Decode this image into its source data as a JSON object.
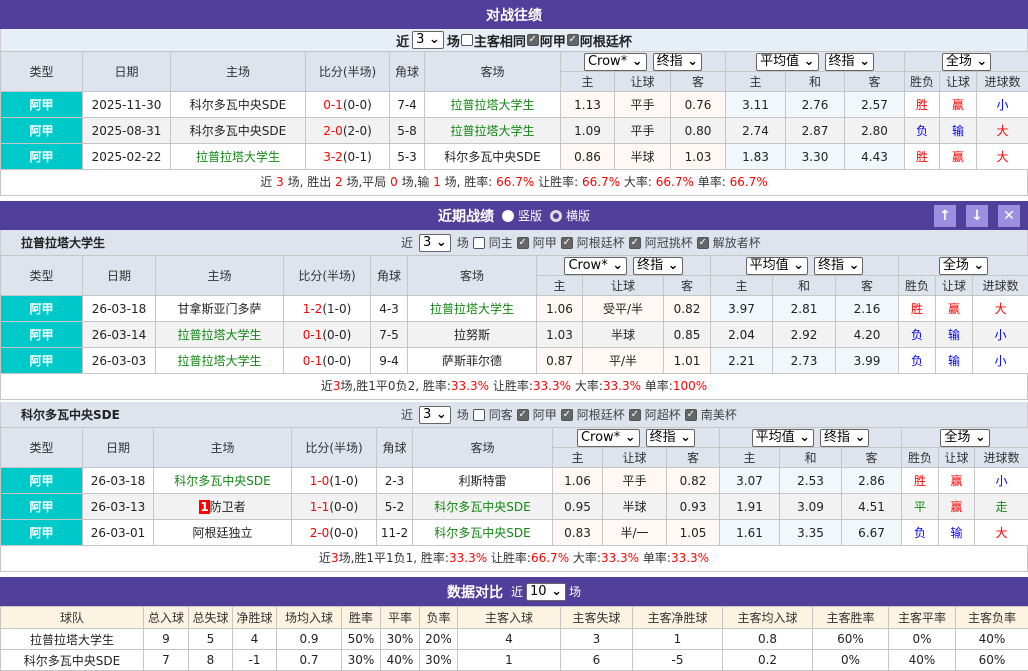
{
  "colors": {
    "header": "#513f9c",
    "type_badge": "#00c9c9",
    "team_highlight": "#118811",
    "win": "#ff0000",
    "lose": "#0000ff"
  },
  "h2h": {
    "title": "对战往绩",
    "near": "近",
    "count": "3",
    "unit": "场",
    "same_label": "主客相同",
    "filters": [
      "阿甲",
      "阿根廷杯"
    ],
    "cols": [
      "类型",
      "日期",
      "主场",
      "比分(半场)",
      "角球",
      "客场"
    ],
    "sel1": "Crow*",
    "sel2": "终指",
    "sel3": "平均值",
    "sel4": "终指",
    "sel5": "全场",
    "sub": [
      "主",
      "让球",
      "客",
      "主",
      "和",
      "客",
      "胜负",
      "让球",
      "进球数"
    ],
    "rows": [
      [
        "阿甲",
        "2025-11-30",
        "科尔多瓦中央SDE",
        "0-1",
        "(0-0)",
        "7-4",
        "拉普拉塔大学生",
        "1.13",
        "平手",
        "0.76",
        "3.11",
        "2.76",
        "2.57",
        "胜",
        "赢",
        "小",
        "away"
      ],
      [
        "阿甲",
        "2025-08-31",
        "科尔多瓦中央SDE",
        "2-0",
        "(2-0)",
        "5-8",
        "拉普拉塔大学生",
        "1.09",
        "平手",
        "0.80",
        "2.74",
        "2.87",
        "2.80",
        "负",
        "输",
        "大",
        "away"
      ],
      [
        "阿甲",
        "2025-02-22",
        "拉普拉塔大学生",
        "3-2",
        "(0-1)",
        "5-3",
        "科尔多瓦中央SDE",
        "0.86",
        "半球",
        "1.03",
        "1.83",
        "3.30",
        "4.43",
        "胜",
        "赢",
        "大",
        "home"
      ]
    ],
    "summary": [
      [
        "近 ",
        ""
      ],
      [
        "3",
        "r"
      ],
      [
        " 场, 胜出 ",
        ""
      ],
      [
        "2",
        "r"
      ],
      [
        " 场,平局 ",
        ""
      ],
      [
        "0",
        "r"
      ],
      [
        " 场,输 ",
        ""
      ],
      [
        "1",
        "r"
      ],
      [
        " 场, 胜率: ",
        ""
      ],
      [
        "66.7%",
        "r"
      ],
      [
        " 让胜率: ",
        ""
      ],
      [
        "66.7%",
        "r"
      ],
      [
        " 大率: ",
        ""
      ],
      [
        "66.7%",
        "r"
      ],
      [
        " 单率: ",
        ""
      ],
      [
        "66.7%",
        "r"
      ]
    ]
  },
  "recent": {
    "title": "近期战绩",
    "opt1": "竖版",
    "opt2": "横版",
    "teams": [
      {
        "name": "拉普拉塔大学生",
        "near": "近",
        "count": "3",
        "unit": "场",
        "same": "同主",
        "filters": [
          "阿甲",
          "阿根廷杯",
          "阿冠挑杯",
          "解放者杯"
        ],
        "rows": [
          [
            "阿甲",
            "26-03-18",
            "甘拿斯亚门多萨",
            "1-2",
            "(1-0)",
            "4-3",
            "拉普拉塔大学生",
            "1.06",
            "受平/半",
            "0.82",
            "3.97",
            "2.81",
            "2.16",
            "胜",
            "赢",
            "大",
            "away"
          ],
          [
            "阿甲",
            "26-03-14",
            "拉普拉塔大学生",
            "0-1",
            "(0-0)",
            "7-5",
            "拉努斯",
            "1.03",
            "半球",
            "0.85",
            "2.04",
            "2.92",
            "4.20",
            "负",
            "输",
            "小",
            "home"
          ],
          [
            "阿甲",
            "26-03-03",
            "拉普拉塔大学生",
            "0-1",
            "(0-0)",
            "9-4",
            "萨斯菲尔德",
            "0.87",
            "平/半",
            "1.01",
            "2.21",
            "2.73",
            "3.99",
            "负",
            "输",
            "小",
            "home"
          ]
        ],
        "summary": [
          [
            "近",
            ""
          ],
          [
            "3",
            "r"
          ],
          [
            "场,胜1平0负2, 胜率:",
            ""
          ],
          [
            "33.3%",
            "r"
          ],
          [
            " 让胜率:",
            ""
          ],
          [
            "33.3%",
            "r"
          ],
          [
            " 大率:",
            ""
          ],
          [
            "33.3%",
            "r"
          ],
          [
            " 单率:",
            ""
          ],
          [
            "100%",
            "r"
          ]
        ]
      },
      {
        "name": "科尔多瓦中央SDE",
        "near": "近",
        "count": "3",
        "unit": "场",
        "same": "同客",
        "filters": [
          "阿甲",
          "阿根廷杯",
          "阿超杯",
          "南美杯"
        ],
        "rows": [
          [
            "阿甲",
            "26-03-18",
            "科尔多瓦中央SDE",
            "1-0",
            "(1-0)",
            "2-3",
            "利斯特雷",
            "1.06",
            "平手",
            "0.82",
            "3.07",
            "2.53",
            "2.86",
            "胜",
            "赢",
            "小",
            "home"
          ],
          [
            "阿甲",
            "26-03-13",
            "防卫者",
            "1-1",
            "(0-0)",
            "5-2",
            "科尔多瓦中央SDE",
            "0.95",
            "半球",
            "0.93",
            "1.91",
            "3.09",
            "4.51",
            "平",
            "赢",
            "走",
            "away",
            "1"
          ],
          [
            "阿甲",
            "26-03-01",
            "阿根廷独立",
            "2-0",
            "(0-0)",
            "11-2",
            "科尔多瓦中央SDE",
            "0.83",
            "半/一",
            "1.05",
            "1.61",
            "3.35",
            "6.67",
            "负",
            "输",
            "大",
            "away"
          ]
        ],
        "summary": [
          [
            "近",
            ""
          ],
          [
            "3",
            "r"
          ],
          [
            "场,胜1平1负1, 胜率:",
            ""
          ],
          [
            "33.3%",
            "r"
          ],
          [
            " 让胜率:",
            ""
          ],
          [
            "66.7%",
            "r"
          ],
          [
            " 大率:",
            ""
          ],
          [
            "33.3%",
            "r"
          ],
          [
            " 单率:",
            ""
          ],
          [
            "33.3%",
            "r"
          ]
        ]
      }
    ]
  },
  "compare": {
    "title": "数据对比",
    "near": "近",
    "count": "10",
    "unit": "场",
    "cols": [
      "球队",
      "总入球",
      "总失球",
      "净胜球",
      "场均入球",
      "胜率",
      "平率",
      "负率",
      "主客入球",
      "主客失球",
      "主客净胜球",
      "主客均入球",
      "主客胜率",
      "主客平率",
      "主客负率"
    ],
    "rows": [
      [
        "拉普拉塔大学生",
        "9",
        "5",
        "4",
        "0.9",
        "50%",
        "30%",
        "20%",
        "4",
        "3",
        "1",
        "0.8",
        "60%",
        "0%",
        "40%"
      ],
      [
        "科尔多瓦中央SDE",
        "7",
        "8",
        "-1",
        "0.7",
        "30%",
        "40%",
        "30%",
        "1",
        "6",
        "-5",
        "0.2",
        "0%",
        "40%",
        "60%"
      ]
    ]
  }
}
